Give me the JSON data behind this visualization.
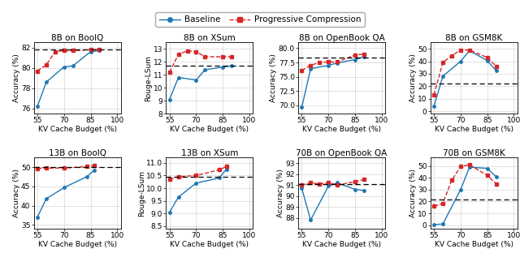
{
  "subplots": [
    {
      "title": "8B on BoolQ",
      "ylabel": "Accuracy (%)",
      "xlabel": "KV Cache Budget (%)",
      "baseline_x": [
        55,
        60,
        70,
        75,
        85,
        90
      ],
      "baseline_y": [
        76.2,
        78.6,
        80.1,
        80.2,
        81.6,
        81.7
      ],
      "progressive_x": [
        55,
        60,
        65,
        70,
        75,
        85,
        90
      ],
      "progressive_y": [
        79.7,
        80.3,
        81.6,
        81.7,
        81.7,
        81.8,
        81.8
      ],
      "hline": 81.8,
      "ylim": [
        75.5,
        82.5
      ],
      "xlim": [
        53,
        102
      ],
      "yticks": [
        76,
        78,
        80,
        82
      ]
    },
    {
      "title": "8B on XSum",
      "ylabel": "Rouge-LSum",
      "xlabel": "KV Cache Budget (%)",
      "baseline_x": [
        55,
        60,
        70,
        75,
        85,
        90
      ],
      "baseline_y": [
        9.1,
        10.8,
        10.6,
        11.4,
        11.6,
        11.7
      ],
      "progressive_x": [
        55,
        60,
        65,
        70,
        75,
        85,
        90
      ],
      "progressive_y": [
        11.2,
        12.6,
        12.85,
        12.8,
        12.4,
        12.4,
        12.4
      ],
      "hline": 11.7,
      "ylim": [
        8.0,
        13.5
      ],
      "xlim": [
        53,
        102
      ],
      "yticks": [
        8,
        9,
        10,
        11,
        12,
        13
      ]
    },
    {
      "title": "8B on OpenBook QA",
      "ylabel": "Accuracy (%)",
      "xlabel": "KV Cache Budget (%)",
      "baseline_x": [
        55,
        60,
        70,
        75,
        85,
        90
      ],
      "baseline_y": [
        69.6,
        76.4,
        77.0,
        77.4,
        78.0,
        78.5
      ],
      "progressive_x": [
        55,
        60,
        65,
        70,
        75,
        85,
        90
      ],
      "progressive_y": [
        76.1,
        77.0,
        77.5,
        77.6,
        77.6,
        78.8,
        79.0
      ],
      "hline": 78.3,
      "ylim": [
        68.5,
        81.0
      ],
      "xlim": [
        53,
        102
      ],
      "yticks": [
        70.0,
        72.5,
        75.0,
        77.5,
        80.0
      ]
    },
    {
      "title": "8B on GSM8K",
      "ylabel": "Accuracy (%)",
      "xlabel": "KV Cache Budget (%)",
      "baseline_x": [
        55,
        60,
        70,
        75,
        85,
        90
      ],
      "baseline_y": [
        4.0,
        28.0,
        40.0,
        48.5,
        40.5,
        32.5
      ],
      "progressive_x": [
        55,
        60,
        65,
        70,
        75,
        85,
        90
      ],
      "progressive_y": [
        13.0,
        39.0,
        44.5,
        49.0,
        49.0,
        43.0,
        36.0
      ],
      "hline": 22.0,
      "ylim": [
        -2,
        55
      ],
      "xlim": [
        53,
        102
      ],
      "yticks": [
        0,
        10,
        20,
        30,
        40,
        50
      ]
    },
    {
      "title": "13B on BoolQ",
      "ylabel": "Accuracy (%)",
      "xlabel": "KV Cache Budget (%)",
      "baseline_x": [
        55,
        60,
        70,
        83,
        87
      ],
      "baseline_y": [
        37.0,
        41.8,
        44.7,
        47.6,
        49.2
      ],
      "progressive_x": [
        55,
        60,
        70,
        83,
        87
      ],
      "progressive_y": [
        49.7,
        49.8,
        49.8,
        50.2,
        50.4
      ],
      "hline": 50.0,
      "ylim": [
        34.0,
        52.5
      ],
      "xlim": [
        53,
        102
      ],
      "yticks": [
        35,
        40,
        45,
        50
      ]
    },
    {
      "title": "13B on XSum",
      "ylabel": "Rouge-LSum",
      "xlabel": "KV Cache Budget (%)",
      "baseline_x": [
        55,
        60,
        70,
        83,
        87
      ],
      "baseline_y": [
        9.05,
        9.65,
        10.2,
        10.4,
        10.75
      ],
      "progressive_x": [
        55,
        60,
        70,
        83,
        87
      ],
      "progressive_y": [
        10.35,
        10.45,
        10.5,
        10.72,
        10.85
      ],
      "hline": 10.45,
      "ylim": [
        8.4,
        11.2
      ],
      "xlim": [
        53,
        102
      ],
      "yticks": [
        8.5,
        9.0,
        9.5,
        10.0,
        10.5,
        11.0
      ]
    },
    {
      "title": "70B on OpenBook QA",
      "ylabel": "Accuracy (%)",
      "xlabel": "KV Cache Budget (%)",
      "baseline_x": [
        55,
        60,
        70,
        75,
        85,
        90
      ],
      "baseline_y": [
        90.7,
        87.8,
        90.9,
        91.2,
        90.6,
        90.5
      ],
      "progressive_x": [
        55,
        60,
        65,
        70,
        75,
        85,
        90
      ],
      "progressive_y": [
        91.0,
        91.2,
        91.1,
        91.2,
        91.0,
        91.3,
        91.5
      ],
      "hline": 91.1,
      "ylim": [
        87.0,
        93.5
      ],
      "xlim": [
        53,
        102
      ],
      "yticks": [
        88,
        89,
        90,
        91,
        92,
        93
      ]
    },
    {
      "title": "70B on GSM8K",
      "ylabel": "Accuracy (%)",
      "xlabel": "KV Cache Budget (%)",
      "baseline_x": [
        55,
        60,
        70,
        75,
        85,
        90
      ],
      "baseline_y": [
        0.5,
        1.0,
        30.0,
        49.0,
        48.0,
        41.0
      ],
      "progressive_x": [
        55,
        60,
        65,
        70,
        75,
        85,
        90
      ],
      "progressive_y": [
        16.0,
        18.5,
        38.0,
        49.5,
        51.0,
        42.0,
        35.0
      ],
      "hline": 22.0,
      "ylim": [
        -3,
        57
      ],
      "xlim": [
        53,
        102
      ],
      "yticks": [
        0,
        10,
        20,
        30,
        40,
        50
      ]
    }
  ],
  "baseline_color": "#1f77b4",
  "progressive_color": "#d62728",
  "hline_color": "black",
  "legend_baseline": "Baseline",
  "legend_progressive": "Progressive Compression",
  "xticks": [
    55,
    70,
    85,
    100
  ],
  "tick_fontsize": 6.5,
  "label_fontsize": 6.5,
  "title_fontsize": 7.5
}
